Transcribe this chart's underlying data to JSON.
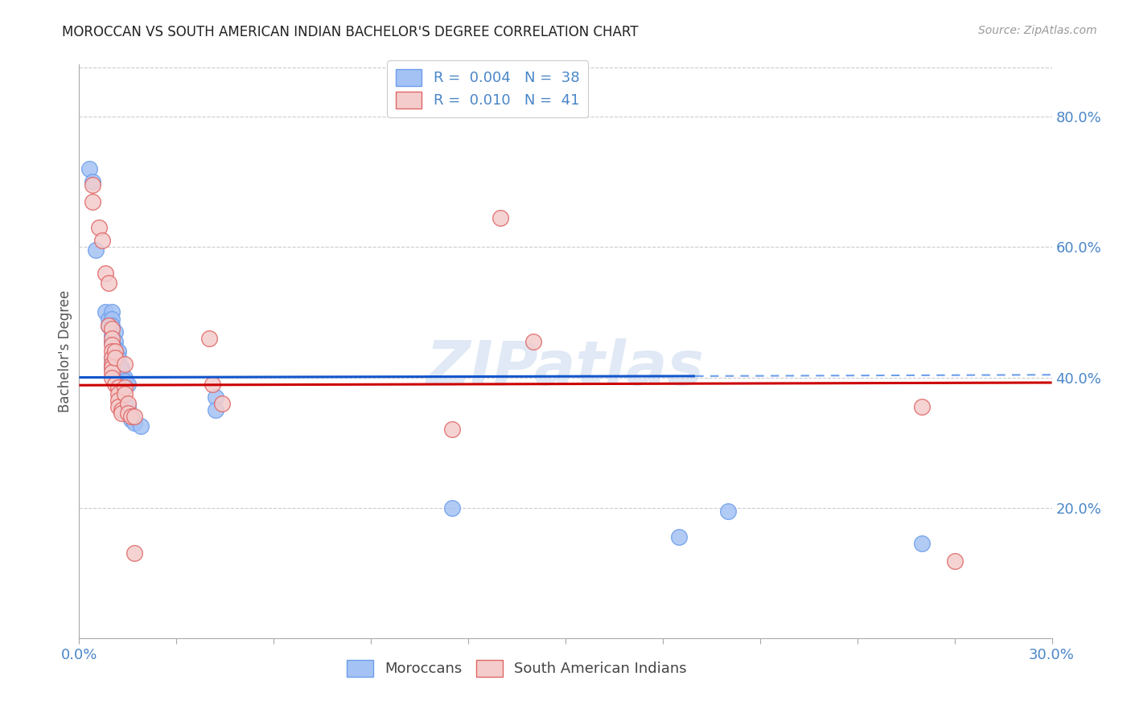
{
  "title": "MOROCCAN VS SOUTH AMERICAN INDIAN BACHELOR'S DEGREE CORRELATION CHART",
  "source": "Source: ZipAtlas.com",
  "ylabel": "Bachelor's Degree",
  "ylim": [
    0.0,
    0.88
  ],
  "xlim": [
    0.0,
    0.3
  ],
  "legend_r_blue": "0.004",
  "legend_n_blue": "38",
  "legend_r_pink": "0.010",
  "legend_n_pink": "41",
  "blue_color": "#a4c2f4",
  "pink_color": "#f4cccc",
  "blue_edge": "#6d9eeb",
  "pink_edge": "#e06666",
  "trend_blue": "#1155cc",
  "trend_pink": "#cc0000",
  "trend_blue_dashed": "#6d9eeb",
  "watermark": "ZIPatlas",
  "blue_scatter": [
    [
      0.003,
      0.72
    ],
    [
      0.004,
      0.7
    ],
    [
      0.005,
      0.595
    ],
    [
      0.008,
      0.5
    ],
    [
      0.009,
      0.49
    ],
    [
      0.009,
      0.48
    ],
    [
      0.01,
      0.5
    ],
    [
      0.01,
      0.49
    ],
    [
      0.01,
      0.48
    ],
    [
      0.01,
      0.465
    ],
    [
      0.01,
      0.455
    ],
    [
      0.01,
      0.43
    ],
    [
      0.01,
      0.42
    ],
    [
      0.01,
      0.415
    ],
    [
      0.011,
      0.47
    ],
    [
      0.011,
      0.455
    ],
    [
      0.011,
      0.445
    ],
    [
      0.012,
      0.44
    ],
    [
      0.012,
      0.43
    ],
    [
      0.012,
      0.42
    ],
    [
      0.013,
      0.415
    ],
    [
      0.013,
      0.41
    ],
    [
      0.014,
      0.4
    ],
    [
      0.014,
      0.395
    ],
    [
      0.014,
      0.39
    ],
    [
      0.015,
      0.39
    ],
    [
      0.015,
      0.355
    ],
    [
      0.015,
      0.345
    ],
    [
      0.016,
      0.34
    ],
    [
      0.016,
      0.335
    ],
    [
      0.017,
      0.33
    ],
    [
      0.019,
      0.325
    ],
    [
      0.042,
      0.37
    ],
    [
      0.042,
      0.35
    ],
    [
      0.115,
      0.2
    ],
    [
      0.185,
      0.155
    ],
    [
      0.2,
      0.195
    ],
    [
      0.26,
      0.145
    ]
  ],
  "pink_scatter": [
    [
      0.004,
      0.695
    ],
    [
      0.004,
      0.67
    ],
    [
      0.006,
      0.63
    ],
    [
      0.007,
      0.61
    ],
    [
      0.008,
      0.56
    ],
    [
      0.009,
      0.545
    ],
    [
      0.009,
      0.48
    ],
    [
      0.01,
      0.475
    ],
    [
      0.01,
      0.46
    ],
    [
      0.01,
      0.45
    ],
    [
      0.01,
      0.44
    ],
    [
      0.01,
      0.43
    ],
    [
      0.01,
      0.42
    ],
    [
      0.01,
      0.415
    ],
    [
      0.01,
      0.408
    ],
    [
      0.01,
      0.4
    ],
    [
      0.011,
      0.44
    ],
    [
      0.011,
      0.43
    ],
    [
      0.011,
      0.39
    ],
    [
      0.012,
      0.385
    ],
    [
      0.012,
      0.375
    ],
    [
      0.012,
      0.365
    ],
    [
      0.012,
      0.355
    ],
    [
      0.013,
      0.35
    ],
    [
      0.013,
      0.345
    ],
    [
      0.014,
      0.42
    ],
    [
      0.014,
      0.385
    ],
    [
      0.014,
      0.375
    ],
    [
      0.015,
      0.36
    ],
    [
      0.015,
      0.345
    ],
    [
      0.016,
      0.34
    ],
    [
      0.017,
      0.34
    ],
    [
      0.017,
      0.13
    ],
    [
      0.04,
      0.46
    ],
    [
      0.041,
      0.39
    ],
    [
      0.044,
      0.36
    ],
    [
      0.115,
      0.32
    ],
    [
      0.13,
      0.645
    ],
    [
      0.14,
      0.455
    ],
    [
      0.26,
      0.355
    ],
    [
      0.27,
      0.118
    ]
  ]
}
